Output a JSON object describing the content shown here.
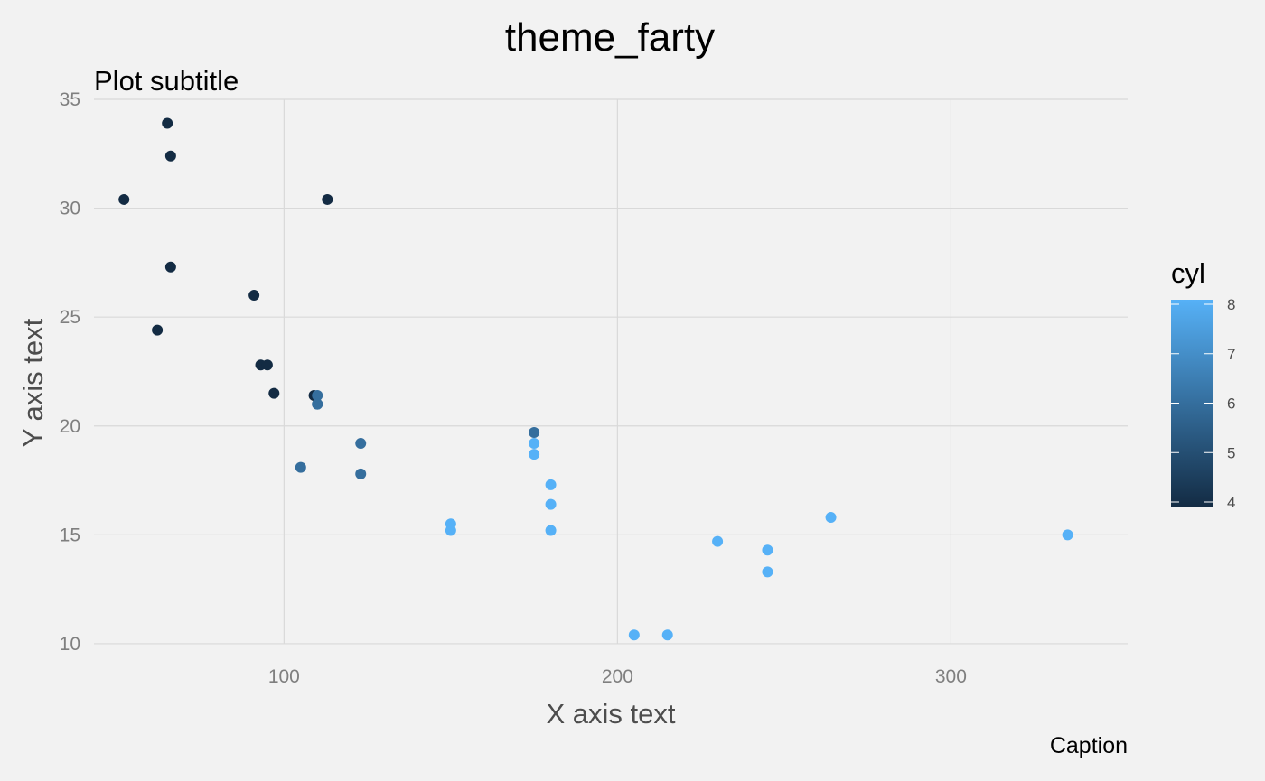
{
  "chart_data": {
    "type": "scatter",
    "title": "theme_farty",
    "subtitle": "Plot subtitle",
    "caption": "Caption",
    "xlabel": "X axis text",
    "ylabel": "Y axis text",
    "xlim": [
      43,
      353
    ],
    "ylim": [
      9.5,
      35
    ],
    "xticks": [
      100,
      200,
      300
    ],
    "yticks": [
      10,
      15,
      20,
      25,
      30,
      35
    ],
    "grid": true,
    "legend": {
      "title": "cyl",
      "placement": "right",
      "type": "continuous-colorbar",
      "range": [
        4,
        8
      ],
      "ticks": [
        4,
        5,
        6,
        7,
        8
      ],
      "color_low": "#132B43",
      "color_high": "#56B1F7"
    },
    "points": [
      {
        "x": 52,
        "y": 30.4,
        "cyl": 4
      },
      {
        "x": 62,
        "y": 24.4,
        "cyl": 4
      },
      {
        "x": 65,
        "y": 33.9,
        "cyl": 4
      },
      {
        "x": 66,
        "y": 32.4,
        "cyl": 4
      },
      {
        "x": 66,
        "y": 27.3,
        "cyl": 4
      },
      {
        "x": 91,
        "y": 26.0,
        "cyl": 4
      },
      {
        "x": 93,
        "y": 22.8,
        "cyl": 4
      },
      {
        "x": 95,
        "y": 22.8,
        "cyl": 4
      },
      {
        "x": 97,
        "y": 21.5,
        "cyl": 4
      },
      {
        "x": 109,
        "y": 21.4,
        "cyl": 4
      },
      {
        "x": 113,
        "y": 30.4,
        "cyl": 4
      },
      {
        "x": 110,
        "y": 21.4,
        "cyl": 6
      },
      {
        "x": 110,
        "y": 21.0,
        "cyl": 6
      },
      {
        "x": 110,
        "y": 21.0,
        "cyl": 6
      },
      {
        "x": 105,
        "y": 18.1,
        "cyl": 6
      },
      {
        "x": 123,
        "y": 19.2,
        "cyl": 6
      },
      {
        "x": 123,
        "y": 17.8,
        "cyl": 6
      },
      {
        "x": 175,
        "y": 19.7,
        "cyl": 6
      },
      {
        "x": 175,
        "y": 18.7,
        "cyl": 8
      },
      {
        "x": 175,
        "y": 19.2,
        "cyl": 8
      },
      {
        "x": 180,
        "y": 16.4,
        "cyl": 8
      },
      {
        "x": 180,
        "y": 17.3,
        "cyl": 8
      },
      {
        "x": 180,
        "y": 15.2,
        "cyl": 8
      },
      {
        "x": 150,
        "y": 15.5,
        "cyl": 8
      },
      {
        "x": 150,
        "y": 15.2,
        "cyl": 8
      },
      {
        "x": 245,
        "y": 14.3,
        "cyl": 8
      },
      {
        "x": 245,
        "y": 13.3,
        "cyl": 8
      },
      {
        "x": 205,
        "y": 10.4,
        "cyl": 8
      },
      {
        "x": 215,
        "y": 10.4,
        "cyl": 8
      },
      {
        "x": 230,
        "y": 14.7,
        "cyl": 8
      },
      {
        "x": 264,
        "y": 15.8,
        "cyl": 8
      },
      {
        "x": 335,
        "y": 15.0,
        "cyl": 8
      }
    ]
  }
}
